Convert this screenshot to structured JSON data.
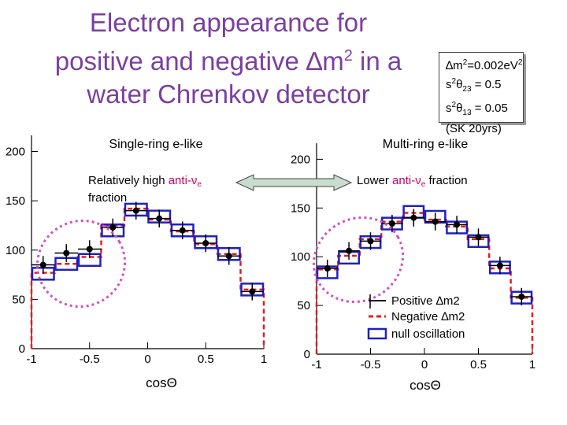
{
  "title": {
    "line1": "Electron appearance for",
    "line2_pre": "positive and negative ",
    "delta": "∆",
    "m": "m",
    "sq": "2",
    "line2_post": " in a",
    "line3": "water Chrenkov detector"
  },
  "params": {
    "dm2_label": "∆m",
    "dm2_sup": "2",
    "dm2_value": "=0.002eV",
    "dm2_unit_sup": "2",
    "s23_pre": "s",
    "s23_sup": "2",
    "s23_theta": "θ",
    "s23_sub": "23",
    "s23_val": " = 0.5",
    "s13_pre": "s",
    "s13_sup": "2",
    "s13_theta": "θ",
    "s13_sub": "13",
    "s13_val": " = 0.05",
    "exposure": "(SK 20yrs)"
  },
  "annotations": {
    "left_text_pre": "Relatively high ",
    "left_text_colored": "anti-ν",
    "left_text_sub": "e",
    "left_text_line2": "fraction",
    "right_text_pre": "Lower  ",
    "right_text_colored": "anti-ν",
    "right_text_sub": "e",
    "right_text_post": " fraction"
  },
  "legend": {
    "positive": "Positive ∆m2",
    "negative": "Negative ∆m2",
    "null": "null oscillation"
  },
  "colors": {
    "title": "#7b3fa0",
    "accent": "#cc0066",
    "positive": "#000000",
    "negative": "#e02020",
    "null": "#2020c0",
    "highlight": "#d050c8",
    "arrow": "#c8dcd0"
  },
  "chart_data": [
    {
      "type": "bar",
      "title": "Single-ring e-like",
      "xlabel": "cosΘ",
      "ylabel": "",
      "xlim": [
        -1,
        1
      ],
      "ylim": [
        0,
        210
      ],
      "xticks": [
        "-1",
        "-0.5",
        "0",
        "0.5",
        "1"
      ],
      "yticks": [
        "0",
        "50",
        "100",
        "150",
        "200"
      ],
      "bin_edges": [
        -1.0,
        -0.8,
        -0.6,
        -0.4,
        -0.2,
        0.0,
        0.2,
        0.4,
        0.6,
        0.8,
        1.0
      ],
      "series": [
        {
          "name": "Positive ∆m2",
          "style": "points",
          "values": [
            85,
            97,
            101,
            123,
            140,
            132,
            120,
            107,
            94,
            58
          ]
        },
        {
          "name": "Negative ∆m2",
          "style": "dashed-step",
          "values": [
            77,
            86,
            93,
            125,
            142,
            131,
            119,
            106,
            96,
            60
          ]
        },
        {
          "name": "null oscillation",
          "style": "open-box",
          "values": [
            76,
            86,
            90,
            120,
            141,
            134,
            120,
            108,
            96,
            60
          ]
        }
      ]
    },
    {
      "type": "bar",
      "title": "Multi-ring e-like",
      "xlabel": "cosΘ",
      "ylabel": "",
      "xlim": [
        -1,
        1
      ],
      "ylim": [
        0,
        210
      ],
      "xticks": [
        "-1",
        "-0.5",
        "0",
        "0.5",
        "1"
      ],
      "yticks": [
        "0",
        "50",
        "100",
        "150",
        "200"
      ],
      "bin_edges": [
        -1.0,
        -0.8,
        -0.6,
        -0.4,
        -0.2,
        0.0,
        0.2,
        0.4,
        0.6,
        0.8,
        1.0
      ],
      "series": [
        {
          "name": "Positive ∆m2",
          "style": "points",
          "values": [
            88,
            106,
            116,
            134,
            140,
            136,
            133,
            120,
            91,
            59
          ]
        },
        {
          "name": "Negative ∆m2",
          "style": "dashed-step",
          "values": [
            87,
            101,
            118,
            136,
            145,
            138,
            131,
            118,
            88,
            58
          ]
        },
        {
          "name": "null oscillation",
          "style": "open-box",
          "values": [
            84,
            99,
            115,
            134,
            146,
            141,
            130,
            116,
            89,
            58
          ]
        }
      ]
    }
  ]
}
